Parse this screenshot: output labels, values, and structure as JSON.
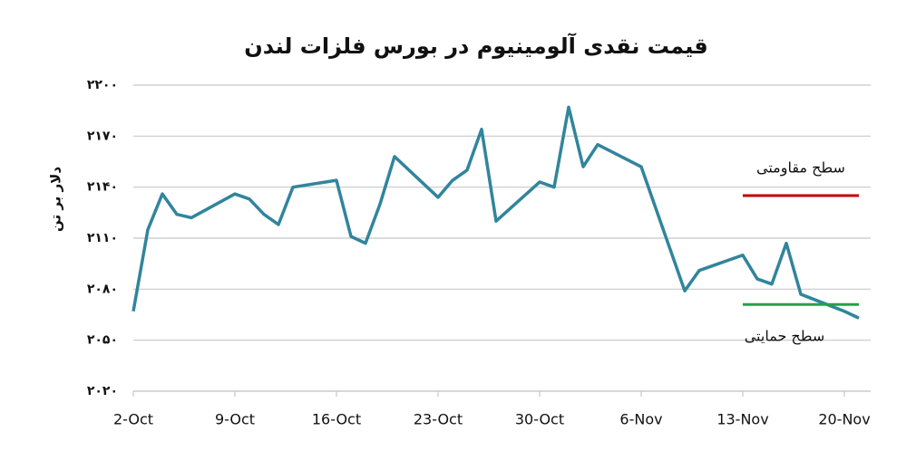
{
  "chart_data": {
    "type": "line",
    "title": "قیمت نقدی آلومینیوم در بورس فلزات لندن",
    "y_label": "دلار بر تن",
    "series": [
      {
        "color": "#31859c",
        "x": [
          "2-Oct",
          "3-Oct",
          "4-Oct",
          "5-Oct",
          "6-Oct",
          "9-Oct",
          "10-Oct",
          "11-Oct",
          "12-Oct",
          "13-Oct",
          "16-Oct",
          "17-Oct",
          "18-Oct",
          "19-Oct",
          "20-Oct",
          "23-Oct",
          "24-Oct",
          "25-Oct",
          "26-Oct",
          "27-Oct",
          "30-Oct",
          "31-Oct",
          "1-Nov",
          "2-Nov",
          "3-Nov",
          "6-Nov",
          "9-Nov",
          "10-Nov",
          "13-Nov",
          "14-Nov",
          "15-Nov",
          "16-Nov",
          "17-Nov",
          "20-Nov",
          "21-Nov"
        ],
        "values": [
          2067,
          2115,
          2136,
          2124,
          2122,
          2136,
          2133,
          2124,
          2118,
          2140,
          2144,
          2111,
          2107,
          2130,
          2158,
          2134,
          2144,
          2150,
          2174,
          2120,
          2143,
          2140,
          2187,
          2152,
          2165,
          2152,
          2079,
          2091,
          2100,
          2086,
          2083,
          2107,
          2077,
          2067,
          2063
        ]
      }
    ],
    "levels": [
      {
        "label": "سطح مقاومتی",
        "value": 2135,
        "color": "#c00000",
        "x": [
          "13-Nov",
          "21-Nov"
        ]
      },
      {
        "label": "سطح حمایتی",
        "value": 2071,
        "color": "#22a34a",
        "x": [
          "13-Nov",
          "21-Nov"
        ]
      }
    ],
    "xlim": [
      "2-Oct",
      "22-Nov"
    ],
    "xticks": [
      "2-Oct",
      "9-Oct",
      "16-Oct",
      "23-Oct",
      "30-Oct",
      "6-Nov",
      "13-Nov",
      "20-Nov"
    ],
    "ylim": [
      2020,
      2200
    ],
    "yticks": [
      {
        "value": 2020,
        "label": "۲۰۲۰"
      },
      {
        "value": 2050,
        "label": "۲۰۵۰"
      },
      {
        "value": 2080,
        "label": "۲۰۸۰"
      },
      {
        "value": 2110,
        "label": "۲۱۱۰"
      },
      {
        "value": 2140,
        "label": "۲۱۴۰"
      },
      {
        "value": 2170,
        "label": "۲۱۷۰"
      },
      {
        "value": 2200,
        "label": "۲۲۰۰"
      }
    ],
    "grid": true
  }
}
